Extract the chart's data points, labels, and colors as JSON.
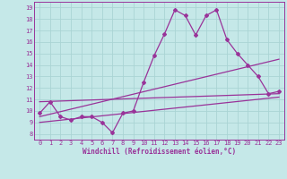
{
  "xlabel": "Windchill (Refroidissement éolien,°C)",
  "bg_color": "#c5e8e8",
  "grid_color": "#aad4d4",
  "line_color": "#993399",
  "xlim": [
    -0.5,
    23.5
  ],
  "ylim": [
    7.5,
    19.5
  ],
  "xticks": [
    0,
    1,
    2,
    3,
    4,
    5,
    6,
    7,
    8,
    9,
    10,
    11,
    12,
    13,
    14,
    15,
    16,
    17,
    18,
    19,
    20,
    21,
    22,
    23
  ],
  "yticks": [
    8,
    9,
    10,
    11,
    12,
    13,
    14,
    15,
    16,
    17,
    18,
    19
  ],
  "series1_x": [
    0,
    1,
    2,
    3,
    4,
    5,
    6,
    7,
    8,
    9,
    10,
    11,
    12,
    13,
    14,
    15,
    16,
    17,
    18,
    19,
    20,
    21,
    22,
    23
  ],
  "series1_y": [
    9.8,
    10.8,
    9.5,
    9.2,
    9.5,
    9.5,
    9.0,
    8.1,
    9.8,
    10.0,
    12.5,
    14.8,
    16.7,
    18.8,
    18.3,
    16.6,
    18.3,
    18.8,
    16.2,
    15.0,
    14.0,
    13.0,
    11.5,
    11.7
  ],
  "series2_x": [
    0,
    23
  ],
  "series2_y": [
    10.8,
    11.5
  ],
  "series3_x": [
    0,
    23
  ],
  "series3_y": [
    9.5,
    14.5
  ],
  "series4_x": [
    0,
    23
  ],
  "series4_y": [
    9.0,
    11.2
  ],
  "tick_fontsize": 5.0,
  "xlabel_fontsize": 5.5,
  "lw": 0.9,
  "ms": 2.0
}
